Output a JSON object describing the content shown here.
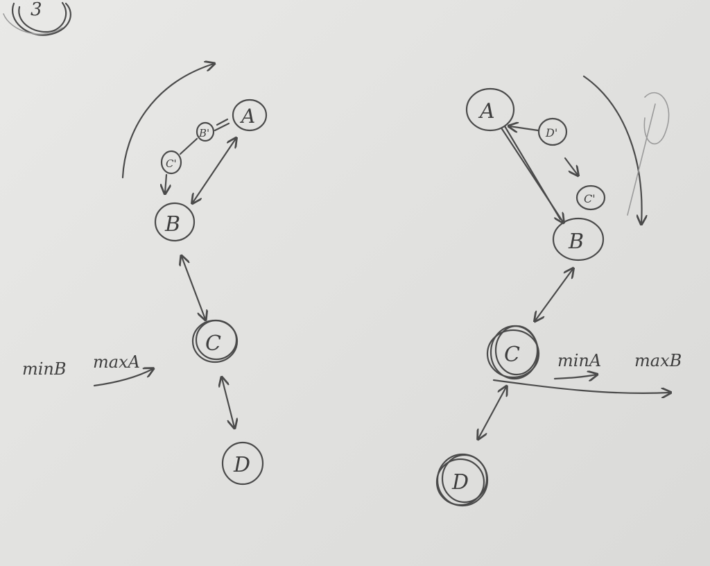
{
  "left_diagram": {
    "nodes": {
      "A": "A",
      "B": "B",
      "B_prime": "B'",
      "C": "C",
      "C_prime": "C'",
      "D": "D"
    },
    "axis_label_min": "minB",
    "axis_label_max": "maxA"
  },
  "right_diagram": {
    "nodes": {
      "A": "A",
      "B": "B",
      "C": "C",
      "C_prime": "C'",
      "D": "D",
      "D_prime": "D'"
    },
    "axis_label_min": "minA",
    "axis_label_max": "maxB"
  },
  "corner_mark": "3",
  "colors": {
    "paper": "#e6e6e4",
    "pencil": "#4a4a4a"
  }
}
